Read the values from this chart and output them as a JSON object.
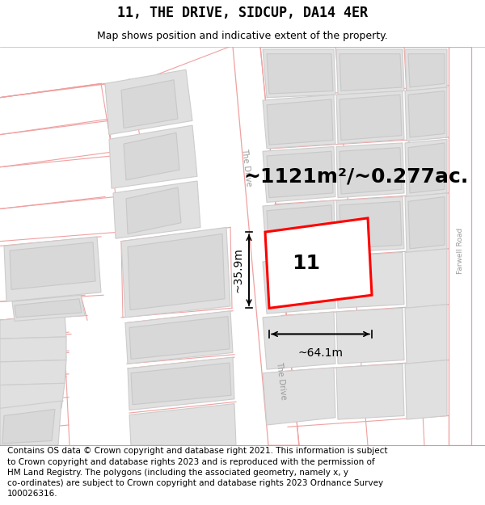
{
  "title": "11, THE DRIVE, SIDCUP, DA14 4ER",
  "subtitle": "Map shows position and indicative extent of the property.",
  "area_text": "~1121m²/~0.277ac.",
  "label_number": "11",
  "width_label": "~64.1m",
  "height_label": "~35.9m",
  "footer_text": "Contains OS data © Crown copyright and database right 2021. This information is subject\nto Crown copyright and database rights 2023 and is reproduced with the permission of\nHM Land Registry. The polygons (including the associated geometry, namely x, y\nco-ordinates) are subject to Crown copyright and database rights 2023 Ordnance Survey\n100026316.",
  "bg_color": "#ffffff",
  "map_bg": "#ffffff",
  "road_outline": "#f0a0a0",
  "building_fill": "#e0e0e0",
  "building_edge": "#cccccc",
  "highlight_color": "#ff0000",
  "title_fontsize": 12,
  "subtitle_fontsize": 9,
  "area_fontsize": 18,
  "label_fontsize": 18,
  "dim_fontsize": 10,
  "footer_fontsize": 7.5
}
